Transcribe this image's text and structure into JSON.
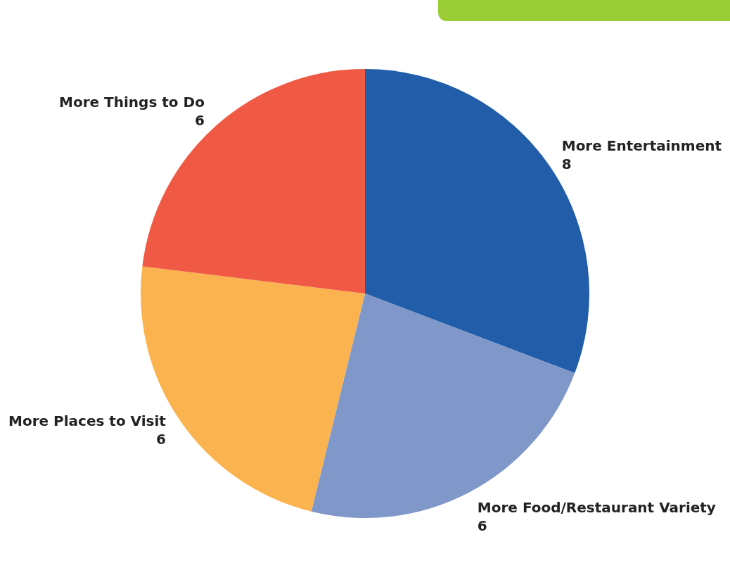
{
  "chart_data": {
    "type": "pie",
    "categories": [
      "More Entertainment",
      "More Food/Restaurant Variety",
      "More Places to Visit",
      "More Things to Do"
    ],
    "values": [
      8,
      6,
      6,
      6
    ],
    "colors": [
      "#215da9",
      "#7f97c9",
      "#fbb34f",
      "#f05a45"
    ],
    "data_labels": true,
    "legend": false
  }
}
